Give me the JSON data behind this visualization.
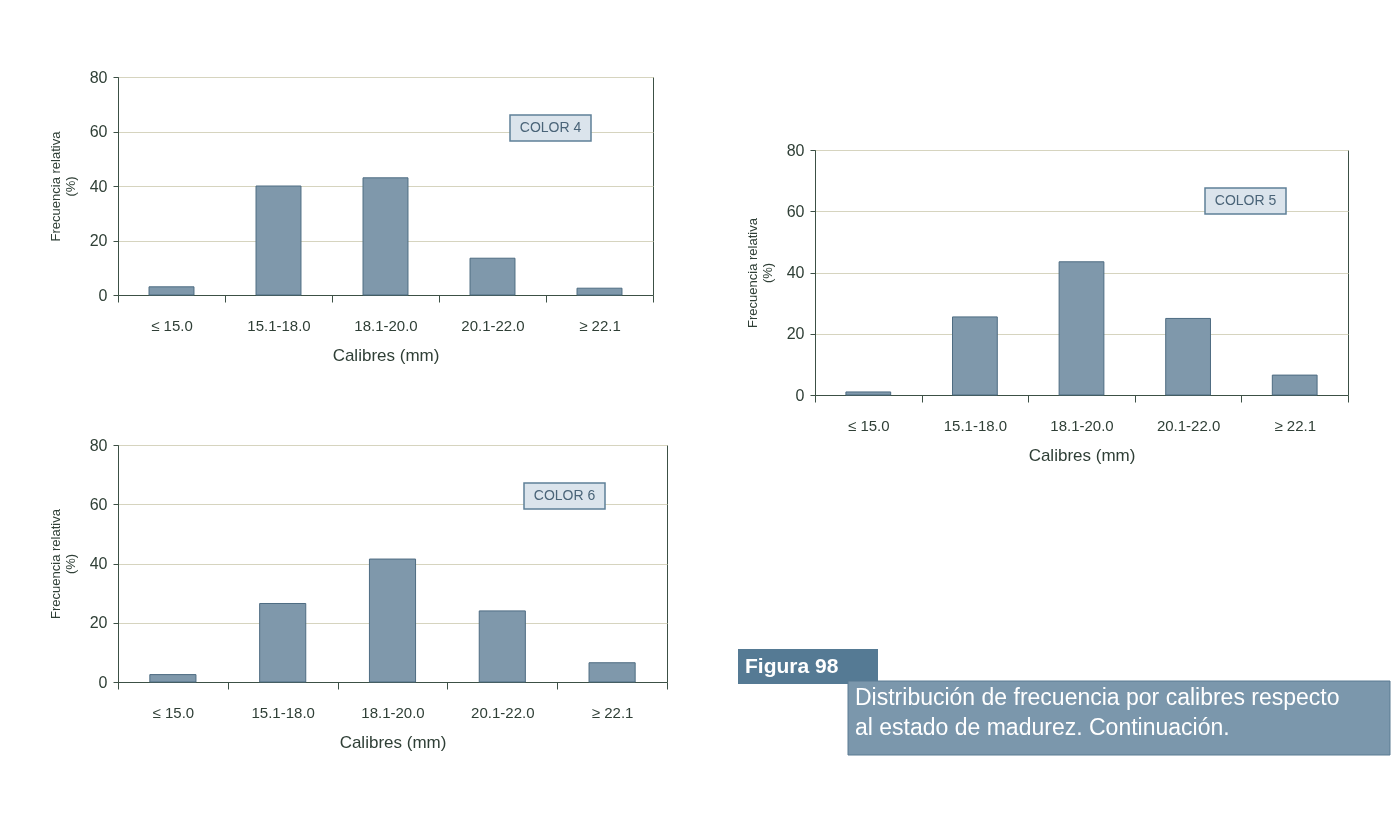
{
  "chart_data": [
    {
      "type": "bar",
      "title": "COLOR 4",
      "xlabel": "Calibres (mm)",
      "ylabel": "Frecuencia relativa (%)",
      "categories": [
        "≤ 15.0",
        "15.1-18.0",
        "18.1-20.0",
        "20.1-22.0",
        "≥ 22.1"
      ],
      "values": [
        3,
        40,
        43,
        13.5,
        2.5
      ],
      "color": "#7f98ab",
      "ylim": [
        0,
        80
      ],
      "yticks": [
        0,
        20,
        40,
        60,
        80
      ],
      "grid": "y"
    },
    {
      "type": "bar",
      "title": "COLOR 5",
      "xlabel": "Calibres (mm)",
      "ylabel": "Frecuencia relativa (%)",
      "categories": [
        "≤ 15.0",
        "15.1-18.0",
        "18.1-20.0",
        "20.1-22.0",
        "≥ 22.1"
      ],
      "values": [
        1,
        25.5,
        43.5,
        25,
        6.5
      ],
      "color": "#7f98ab",
      "ylim": [
        0,
        80
      ],
      "yticks": [
        0,
        20,
        40,
        60,
        80
      ],
      "grid": "y"
    },
    {
      "type": "bar",
      "title": "COLOR 6",
      "xlabel": "Calibres (mm)",
      "ylabel": "Frecuencia relativa (%)",
      "categories": [
        "≤ 15.0",
        "15.1-18.0",
        "18.1-20.0",
        "20.1-22.0",
        "≥ 22.1"
      ],
      "values": [
        2.5,
        26.5,
        41.5,
        24,
        6.5
      ],
      "color": "#7f98ab",
      "ylim": [
        0,
        80
      ],
      "yticks": [
        0,
        20,
        40,
        60,
        80
      ],
      "grid": "y"
    },
    {
      "type": "other",
      "title": "Figura 98",
      "subtitle": "Distribución de frecuencia por calibres respecto al estado de madurez. Continuación."
    }
  ]
}
